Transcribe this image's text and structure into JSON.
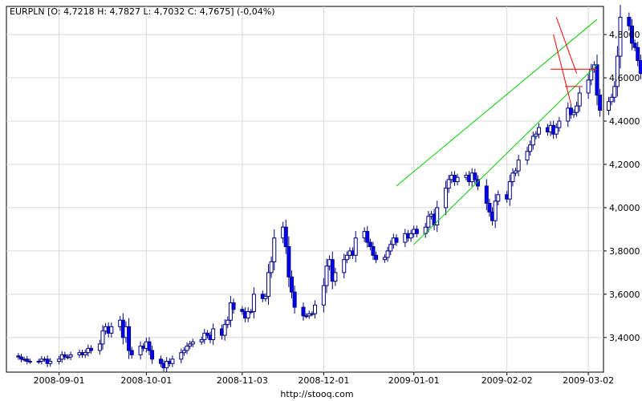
{
  "chart_data": {
    "type": "candlestick",
    "title": "EURPLN [O: 4,7218  H: 4,7827  L: 4,7032  C: 4,7675] (-0,04%)",
    "footer": "http://stooq.com",
    "x_tick_labels": [
      "2008-09-01",
      "2008-10-01",
      "2008-11-03",
      "2008-12-01",
      "2009-01-01",
      "2009-02-02",
      "2009-03-02"
    ],
    "y_tick_labels": [
      "3,4000",
      "3,6000",
      "3,8000",
      "4,0000",
      "4,2000",
      "4,4000",
      "4,6000",
      "4,8000"
    ],
    "ylim": [
      3.24,
      4.93
    ],
    "y_ticks": [
      3.4,
      3.6,
      3.8,
      4.0,
      4.2,
      4.4,
      4.6,
      4.8
    ],
    "grid": true,
    "colors": {
      "up_body": "#ffffff",
      "down_body": "#0000ff",
      "wick": "#000080",
      "channel": "#00cc00",
      "trend_lines": "#ff0000",
      "grid": "#d8d8d8",
      "frame": "#000000"
    },
    "closes": [
      3.31,
      3.3,
      3.3,
      3.29,
      3.29,
      3.29,
      3.3,
      3.3,
      3.28,
      3.29,
      3.3,
      3.32,
      3.31,
      3.31,
      3.32,
      3.33,
      3.32,
      3.33,
      3.35,
      3.34,
      3.37,
      3.43,
      3.45,
      3.42,
      3.45,
      3.48,
      3.4,
      3.45,
      3.34,
      3.32,
      3.36,
      3.35,
      3.38,
      3.34,
      3.3,
      3.28,
      3.26,
      3.29,
      3.28,
      3.3,
      3.33,
      3.34,
      3.36,
      3.37,
      3.38,
      3.39,
      3.42,
      3.41,
      3.39,
      3.44,
      3.41,
      3.46,
      3.48,
      3.56,
      3.53,
      3.52,
      3.49,
      3.52,
      3.52,
      3.6,
      3.58,
      3.59,
      3.7,
      3.75,
      3.86,
      3.91,
      3.82,
      3.68,
      3.61,
      3.54,
      3.5,
      3.5,
      3.51,
      3.51,
      3.55,
      3.64,
      3.73,
      3.76,
      3.66,
      3.7,
      3.76,
      3.78,
      3.8,
      3.78,
      3.86,
      3.89,
      3.84,
      3.82,
      3.78,
      3.76,
      3.77,
      3.8,
      3.83,
      3.86,
      3.84,
      3.88,
      3.86,
      3.88,
      3.9,
      3.88,
      3.91,
      3.96,
      3.97,
      3.92,
      4.0,
      4.09,
      4.13,
      4.15,
      4.12,
      4.14,
      4.15,
      4.12,
      4.16,
      4.13,
      4.1,
      4.02,
      3.98,
      3.94,
      4.03,
      4.06,
      4.04,
      4.12,
      4.16,
      4.17,
      4.22,
      4.26,
      4.29,
      4.33,
      4.34,
      4.37,
      4.35,
      4.38,
      4.34,
      4.37,
      4.4,
      4.46,
      4.43,
      4.44,
      4.47,
      4.53,
      4.59,
      4.64,
      4.66,
      4.52,
      4.45,
      4.49,
      4.51,
      4.56,
      4.7,
      4.88,
      4.84,
      4.76,
      4.74,
      4.68,
      4.62,
      4.66,
      4.67,
      4.64,
      4.68,
      4.7,
      4.72,
      4.74,
      4.77
    ]
  },
  "overlays": {
    "channel_lines": [
      {
        "from": [
          "2008-12-26",
          4.1
        ],
        "to": [
          "2009-03-05",
          4.87
        ]
      },
      {
        "from": [
          "2009-01-01",
          3.83
        ],
        "to": [
          "2009-03-05",
          4.66
        ]
      }
    ],
    "trend_lines": [
      {
        "from": [
          "2009-02-19",
          4.88
        ],
        "to": [
          "2009-02-26",
          4.62
        ]
      },
      {
        "from": [
          "2009-02-18",
          4.8
        ],
        "to": [
          "2009-02-24",
          4.48
        ]
      },
      {
        "from": [
          "2009-02-17",
          4.64
        ],
        "to": [
          "2009-03-05",
          4.64
        ]
      },
      {
        "from": [
          "2009-02-22",
          4.56
        ],
        "to": [
          "2009-02-28",
          4.56
        ]
      }
    ]
  }
}
